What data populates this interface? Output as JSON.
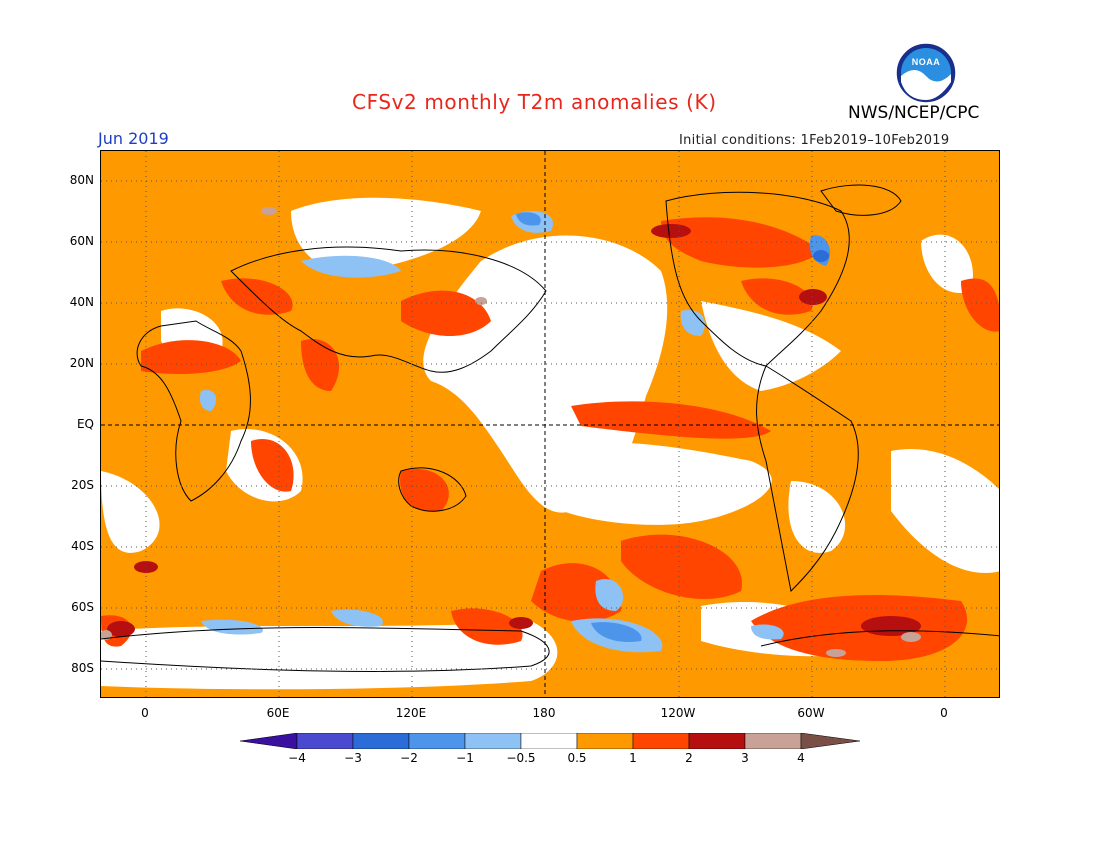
{
  "title": "CFSv2 monthly T2m anomalies (K)",
  "organization": "NWS/NCEP/CPC",
  "logo_text": "NOAA",
  "month_label": "Jun 2019",
  "initial_conditions": "Initial conditions: 1Feb2019–10Feb2019",
  "lat_labels": [
    "80N",
    "60N",
    "40N",
    "20N",
    "EQ",
    "20S",
    "40S",
    "60S",
    "80S"
  ],
  "lon_labels": [
    "0",
    "60E",
    "120E",
    "180",
    "120W",
    "60W",
    "0"
  ],
  "colorbar": {
    "labels": [
      "−4",
      "−3",
      "−2",
      "−1",
      "−0.5",
      "0.5",
      "1",
      "2",
      "3",
      "4"
    ],
    "colors": [
      "#3a10a0",
      "#4a4ad0",
      "#2b6cd8",
      "#4d95ea",
      "#8ec2f4",
      "#ffffff",
      "#ff9900",
      "#ff4500",
      "#b50f0f",
      "#c8a296",
      "#7a4f45"
    ]
  },
  "map_colors": {
    "warm_05_1": "#ff9900",
    "warm_1_2": "#ff4500",
    "warm_2_3": "#b50f0f",
    "warm_3_4": "#c8a296",
    "cool_05_1": "#8ec2f4",
    "cool_1_2": "#4d95ea",
    "cool_2_3": "#2b6cd8"
  }
}
